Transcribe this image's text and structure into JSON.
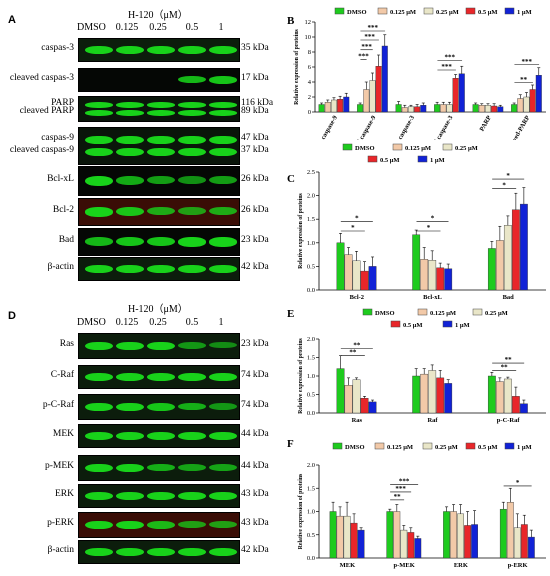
{
  "panelA": {
    "letter": "A",
    "header": "H-120（μM）",
    "lanes": [
      "DMSO",
      "0.125",
      "0.25",
      "0.5",
      "1"
    ],
    "rows": [
      {
        "labels": [
          "caspas-3"
        ],
        "kda": [
          "35 kDa"
        ],
        "bands": [
          1,
          1,
          1,
          1,
          1
        ],
        "tone": "green"
      },
      {
        "labels": [
          "cleaved caspas-3"
        ],
        "kda": [
          "17 kDa"
        ],
        "bands": [
          0,
          0,
          0,
          0.8,
          0.9
        ],
        "tone": "dark"
      },
      {
        "labels": [
          "PARP",
          "cleaved PARP"
        ],
        "kda": [
          "116 kDa",
          "89 kDa"
        ],
        "bands": [
          1,
          1,
          1,
          1,
          1
        ],
        "tone": "green2"
      },
      {
        "labels": [
          "caspas-9",
          "cleaved caspas-9"
        ],
        "kda": [
          "47 kDa",
          "37 kDa"
        ],
        "bands": [
          1,
          1,
          1,
          1,
          1
        ],
        "tone": "green2"
      },
      {
        "labels": [
          "Bcl-xL"
        ],
        "kda": [
          "26 kDa"
        ],
        "bands": [
          1,
          0.7,
          0.6,
          0.5,
          0.6
        ],
        "tone": "dark"
      },
      {
        "labels": [
          "Bcl-2"
        ],
        "kda": [
          "26 kDa"
        ],
        "bands": [
          1,
          0.9,
          0.7,
          0.6,
          0.7
        ],
        "tone": "red"
      },
      {
        "labels": [
          "Bad"
        ],
        "kda": [
          "23 kDa"
        ],
        "bands": [
          0.8,
          0.9,
          0.9,
          1,
          1
        ],
        "tone": "dark"
      },
      {
        "labels": [
          "β-actin"
        ],
        "kda": [
          "42 kDa"
        ],
        "bands": [
          1,
          1,
          1,
          1,
          1
        ],
        "tone": "green"
      }
    ]
  },
  "panelD": {
    "letter": "D",
    "header": "H-120（μM）",
    "lanes": [
      "DMSO",
      "0.125",
      "0.25",
      "0.5",
      "1"
    ],
    "rows": [
      {
        "labels": [
          "Ras"
        ],
        "kda": [
          "23 kDa"
        ],
        "bands": [
          1,
          1,
          1,
          0.5,
          0.4
        ],
        "tone": "green"
      },
      {
        "labels": [
          "C-Raf"
        ],
        "kda": [
          "74 kDa"
        ],
        "bands": [
          1,
          1,
          1,
          1,
          1
        ],
        "tone": "green"
      },
      {
        "labels": [
          "p-C-Raf"
        ],
        "kda": [
          "74 kDa"
        ],
        "bands": [
          1,
          1,
          0.9,
          0.7,
          0.5
        ],
        "tone": "green"
      },
      {
        "labels": [
          "MEK"
        ],
        "kda": [
          "44 kDa"
        ],
        "bands": [
          1,
          1,
          1,
          1,
          1
        ],
        "tone": "green"
      },
      {
        "labels": [
          "p-MEK"
        ],
        "kda": [
          "44 kDa"
        ],
        "bands": [
          1,
          1,
          0.7,
          0.6,
          0.6
        ],
        "tone": "green"
      },
      {
        "labels": [
          "ERK"
        ],
        "kda": [
          "43 kDa"
        ],
        "bands": [
          1,
          1,
          1,
          1,
          1
        ],
        "tone": "green"
      },
      {
        "labels": [
          "p-ERK"
        ],
        "kda": [
          "43 kDa"
        ],
        "bands": [
          1,
          1,
          0.8,
          0.6,
          0.6
        ],
        "tone": "red"
      },
      {
        "labels": [
          "β-actin"
        ],
        "kda": [
          "42 kDa"
        ],
        "bands": [
          1,
          1,
          1,
          1,
          1
        ],
        "tone": "green"
      }
    ]
  },
  "legend": {
    "entries": [
      "DMSO",
      "0.125 μM",
      "0.25 μM",
      "0.5 μM",
      "1 μM"
    ],
    "colors": [
      "#1ecb1e",
      "#f2c9a8",
      "#e9e6c8",
      "#e8262a",
      "#1122d6"
    ]
  },
  "chart_data": [
    {
      "panel": "B",
      "type": "bar",
      "ylabel": "Relative expression of proteins",
      "ylim": [
        0,
        12
      ],
      "yticks": [
        0,
        2,
        4,
        6,
        8,
        10,
        12
      ],
      "categories": [
        "caspase-9",
        "cleaved caspase-9",
        "caspase-3",
        "cleaved caspase-3",
        "PARP",
        "cleaved-PARP"
      ],
      "series": [
        {
          "name": "DMSO",
          "values": [
            1.0,
            1.0,
            1.0,
            1.0,
            1.0,
            1.0
          ],
          "err": [
            0.2,
            0.2,
            0.4,
            0.3,
            0.2,
            0.2
          ]
        },
        {
          "name": "0.125 μM",
          "values": [
            1.3,
            3.0,
            0.6,
            1.0,
            0.9,
            1.8
          ],
          "err": [
            0.3,
            1.0,
            0.3,
            0.3,
            0.2,
            0.5
          ]
        },
        {
          "name": "0.25 μM",
          "values": [
            1.6,
            4.2,
            0.7,
            1.0,
            0.9,
            2.0
          ],
          "err": [
            0.3,
            1.0,
            0.2,
            0.3,
            0.2,
            0.6
          ]
        },
        {
          "name": "0.5 μM",
          "values": [
            1.7,
            6.1,
            0.7,
            4.5,
            0.8,
            3.0
          ],
          "err": [
            0.4,
            1.5,
            0.3,
            0.5,
            0.3,
            0.6
          ]
        },
        {
          "name": "1 μM",
          "values": [
            2.0,
            8.8,
            0.9,
            5.1,
            0.7,
            4.9
          ],
          "err": [
            0.5,
            1.5,
            0.3,
            1.0,
            0.2,
            1.0
          ]
        }
      ],
      "sig": [
        {
          "cat": 1,
          "from": 0,
          "to": 1,
          "label": "***",
          "y": 7.0
        },
        {
          "cat": 1,
          "from": 0,
          "to": 2,
          "label": "***",
          "y": 8.3
        },
        {
          "cat": 1,
          "from": 0,
          "to": 3,
          "label": "***",
          "y": 9.6
        },
        {
          "cat": 1,
          "from": 0,
          "to": 4,
          "label": "***",
          "y": 10.8
        },
        {
          "cat": 3,
          "from": 0,
          "to": 3,
          "label": "***",
          "y": 5.6
        },
        {
          "cat": 3,
          "from": 0,
          "to": 4,
          "label": "***",
          "y": 6.9
        },
        {
          "cat": 5,
          "from": 0,
          "to": 3,
          "label": "**",
          "y": 3.9
        },
        {
          "cat": 5,
          "from": 0,
          "to": 4,
          "label": "***",
          "y": 6.3
        }
      ]
    },
    {
      "panel": "C",
      "type": "bar",
      "ylabel": "Relative expression of proteins",
      "ylim": [
        0,
        2.5
      ],
      "yticks": [
        0.0,
        0.5,
        1.0,
        1.5,
        2.0,
        2.5
      ],
      "categories": [
        "Bcl-2",
        "Bcl-xL",
        "Bad"
      ],
      "series": [
        {
          "name": "DMSO",
          "values": [
            1.0,
            1.17,
            0.88
          ],
          "err": [
            0.2,
            0.1,
            0.15
          ]
        },
        {
          "name": "0.125 μM",
          "values": [
            0.75,
            0.65,
            1.05
          ],
          "err": [
            0.15,
            0.25,
            0.3
          ]
        },
        {
          "name": "0.25 μM",
          "values": [
            0.62,
            0.63,
            1.37
          ],
          "err": [
            0.2,
            0.2,
            0.2
          ]
        },
        {
          "name": "0.5 μM",
          "values": [
            0.4,
            0.47,
            1.7
          ],
          "err": [
            0.2,
            0.1,
            0.35
          ]
        },
        {
          "name": "1 μM",
          "values": [
            0.5,
            0.45,
            1.82
          ],
          "err": [
            0.2,
            0.1,
            0.35
          ]
        }
      ],
      "sig": [
        {
          "cat": 0,
          "from": 0,
          "to": 3,
          "label": "*",
          "y": 1.25
        },
        {
          "cat": 0,
          "from": 0,
          "to": 4,
          "label": "*",
          "y": 1.45
        },
        {
          "cat": 1,
          "from": 0,
          "to": 3,
          "label": "*",
          "y": 1.25
        },
        {
          "cat": 1,
          "from": 0,
          "to": 4,
          "label": "*",
          "y": 1.45
        },
        {
          "cat": 2,
          "from": 0,
          "to": 3,
          "label": "*",
          "y": 2.15
        },
        {
          "cat": 2,
          "from": 0,
          "to": 4,
          "label": "*",
          "y": 2.35
        }
      ]
    },
    {
      "panel": "E",
      "type": "bar",
      "ylabel": "Relative expression of proteins",
      "ylim": [
        0,
        2.0
      ],
      "yticks": [
        0.0,
        0.5,
        1.0,
        1.5,
        2.0
      ],
      "categories": [
        "Ras",
        "Raf",
        "p-C-Raf"
      ],
      "series": [
        {
          "name": "DMSO",
          "values": [
            1.2,
            1.0,
            1.0
          ],
          "err": [
            0.35,
            0.2,
            0.1
          ]
        },
        {
          "name": "0.125 μM",
          "values": [
            0.75,
            1.05,
            0.85
          ],
          "err": [
            0.2,
            0.15,
            0.1
          ]
        },
        {
          "name": "0.25 μM",
          "values": [
            0.9,
            1.15,
            0.92
          ],
          "err": [
            0.05,
            0.15,
            0.05
          ]
        },
        {
          "name": "0.5 μM",
          "values": [
            0.4,
            0.95,
            0.45
          ],
          "err": [
            0.05,
            0.2,
            0.25
          ]
        },
        {
          "name": "1 μM",
          "values": [
            0.3,
            0.8,
            0.25
          ],
          "err": [
            0.05,
            0.1,
            0.1
          ]
        }
      ],
      "sig": [
        {
          "cat": 0,
          "from": 0,
          "to": 3,
          "label": "**",
          "y": 1.55
        },
        {
          "cat": 0,
          "from": 0,
          "to": 4,
          "label": "**",
          "y": 1.75
        },
        {
          "cat": 2,
          "from": 0,
          "to": 3,
          "label": "**",
          "y": 1.15
        },
        {
          "cat": 2,
          "from": 0,
          "to": 4,
          "label": "**",
          "y": 1.35
        }
      ]
    },
    {
      "panel": "F",
      "type": "bar",
      "ylabel": "Relative expression of proteins",
      "ylim": [
        0,
        2.0
      ],
      "yticks": [
        0.0,
        0.5,
        1.0,
        1.5,
        2.0
      ],
      "categories": [
        "MEK",
        "p-MEK",
        "ERK",
        "p-ERK"
      ],
      "series": [
        {
          "name": "DMSO",
          "values": [
            1.0,
            1.0,
            1.0,
            1.05
          ],
          "err": [
            0.2,
            0.05,
            0.1,
            0.15
          ]
        },
        {
          "name": "0.125 μM",
          "values": [
            0.9,
            1.0,
            1.0,
            1.2
          ],
          "err": [
            0.2,
            0.15,
            0.15,
            0.3
          ]
        },
        {
          "name": "0.25 μM",
          "values": [
            0.9,
            0.6,
            0.95,
            0.65
          ],
          "err": [
            0.3,
            0.1,
            0.2,
            0.3
          ]
        },
        {
          "name": "0.5 μM",
          "values": [
            0.75,
            0.55,
            0.7,
            0.72
          ],
          "err": [
            0.2,
            0.1,
            0.3,
            0.2
          ]
        },
        {
          "name": "1 μM",
          "values": [
            0.6,
            0.42,
            0.72,
            0.45
          ],
          "err": [
            0.05,
            0.05,
            0.3,
            0.15
          ]
        }
      ],
      "sig": [
        {
          "cat": 1,
          "from": 0,
          "to": 2,
          "label": "**",
          "y": 1.25
        },
        {
          "cat": 1,
          "from": 0,
          "to": 3,
          "label": "***",
          "y": 1.42
        },
        {
          "cat": 1,
          "from": 0,
          "to": 4,
          "label": "***",
          "y": 1.58
        },
        {
          "cat": 3,
          "from": 0,
          "to": 4,
          "label": "*",
          "y": 1.55
        }
      ]
    }
  ]
}
